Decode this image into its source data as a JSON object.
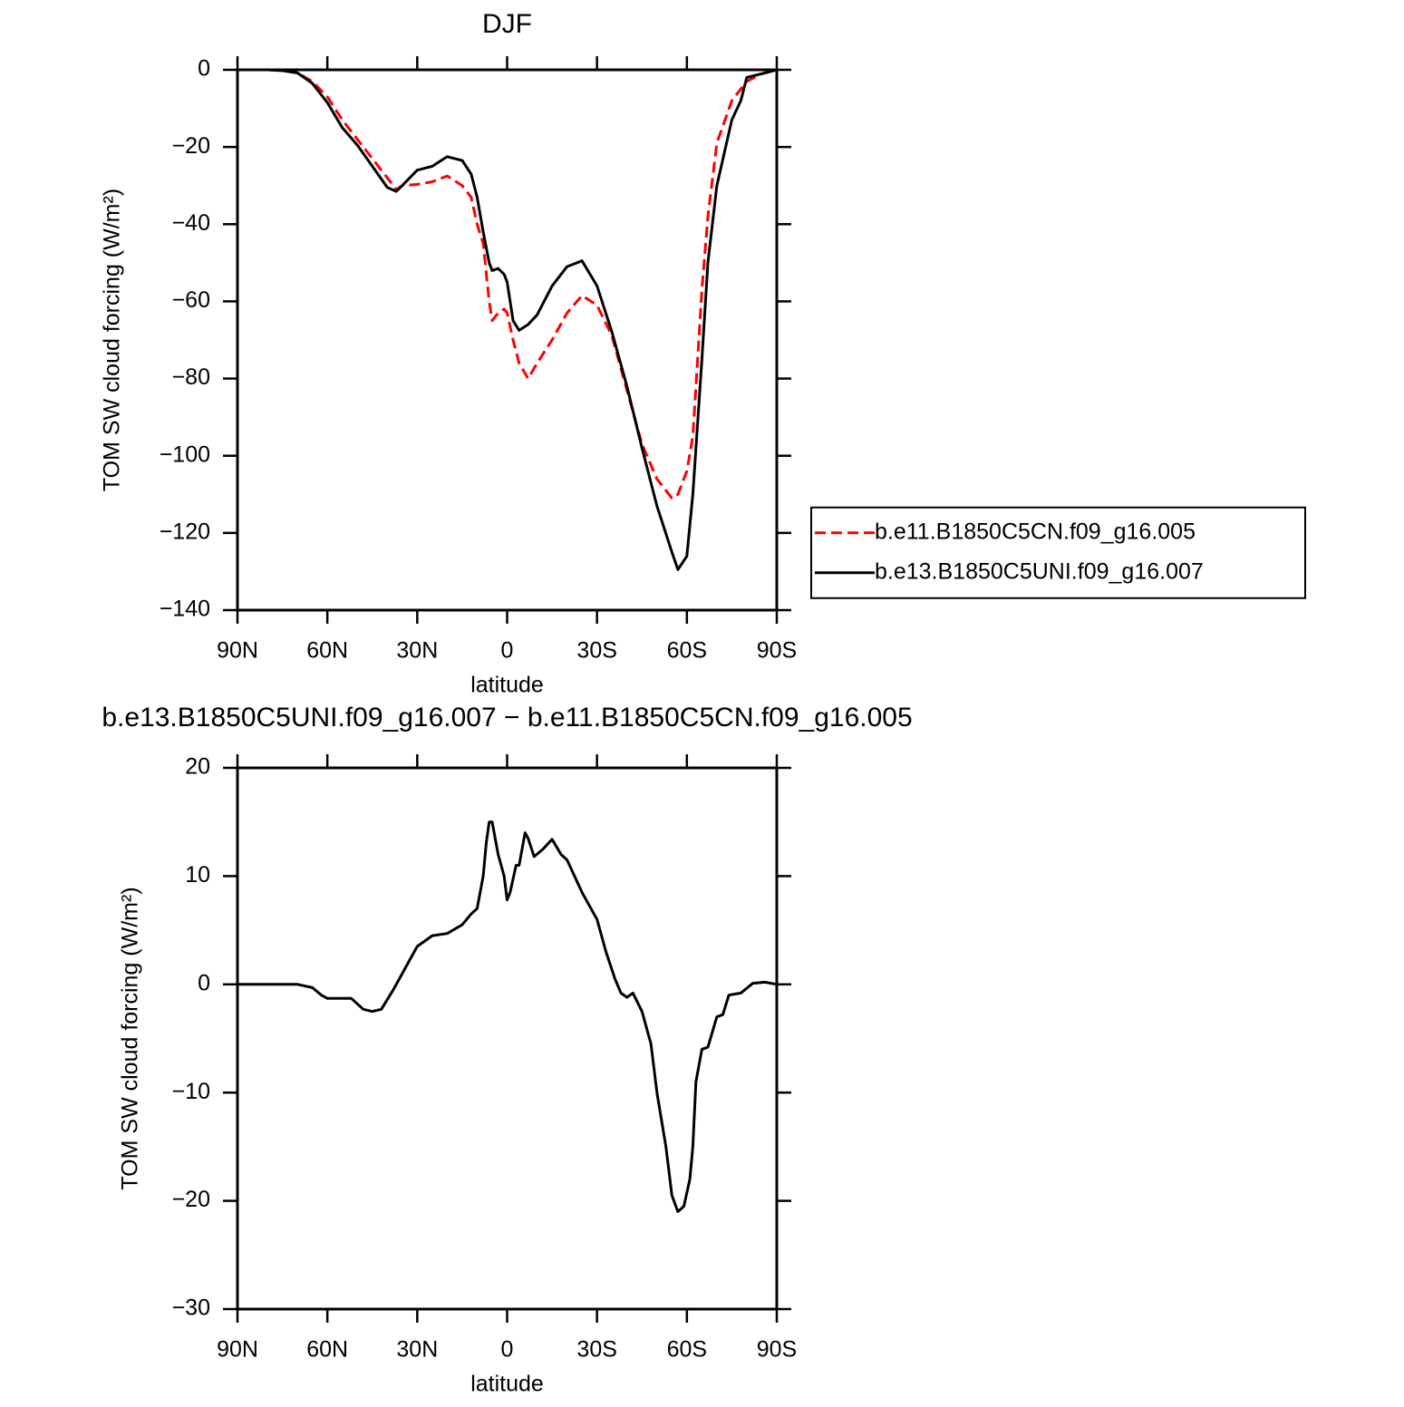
{
  "chart_data": [
    {
      "type": "line",
      "title": "DJF",
      "x_label": "latitude",
      "y_label": "TOM SW cloud forcing (W/m²)",
      "xlim": [
        90,
        -90
      ],
      "xticks": [
        {
          "value": 90,
          "label": "90N"
        },
        {
          "value": 60,
          "label": "60N"
        },
        {
          "value": 30,
          "label": "30N"
        },
        0,
        {
          "value": -30,
          "label": "30S"
        },
        {
          "value": -60,
          "label": "60S"
        },
        {
          "value": -90,
          "label": "90S"
        }
      ],
      "ylim": [
        -140,
        0
      ],
      "yticks": [
        0,
        {
          "value": -20,
          "label": "−20"
        },
        {
          "value": -40,
          "label": "−40"
        },
        {
          "value": -60,
          "label": "−60"
        },
        {
          "value": -80,
          "label": "−80"
        },
        {
          "value": -100,
          "label": "−100"
        },
        {
          "value": -120,
          "label": "−120"
        },
        {
          "value": -140,
          "label": "−140"
        }
      ],
      "legend": "right",
      "x": [
        90,
        85,
        80,
        75,
        70,
        65,
        60,
        55,
        50,
        45,
        40,
        37,
        35,
        30,
        25,
        20,
        15,
        12,
        10,
        8,
        6,
        5,
        3,
        1,
        0,
        -2,
        -4,
        -7,
        -10,
        -15,
        -20,
        -25,
        -30,
        -35,
        -40,
        -45,
        -50,
        -55,
        -57,
        -60,
        -62,
        -65,
        -67,
        -70,
        -75,
        -78,
        -80,
        -85,
        -90
      ],
      "series": [
        {
          "name": "b.e11.B1850C5CN.f09_g16.005",
          "color": "#ff0000",
          "style": "dashed",
          "values": [
            0,
            0,
            0,
            -0.2,
            -0.8,
            -3,
            -7,
            -13,
            -18,
            -23,
            -28,
            -31,
            -30,
            -29.7,
            -29,
            -27.5,
            -30,
            -33,
            -40,
            -45,
            -60,
            -65,
            -63,
            -62,
            -63,
            -70,
            -76,
            -80,
            -76,
            -70,
            -63,
            -58.5,
            -61,
            -69,
            -83,
            -97,
            -106,
            -111,
            -110,
            -104,
            -95,
            -57,
            -38,
            -19,
            -8,
            -5,
            -3,
            -1,
            0
          ]
        },
        {
          "name": "b.e13.B1850C5UNI.f09_g16.007",
          "color": "#000000",
          "style": "solid",
          "values": [
            0,
            0,
            0,
            -0.2,
            -0.8,
            -3.5,
            -8.5,
            -15,
            -19.5,
            -25,
            -30.5,
            -31.5,
            -30,
            -26,
            -25,
            -22.5,
            -23.5,
            -27,
            -33,
            -42,
            -50,
            -52,
            -51.5,
            -53,
            -55,
            -65,
            -67.5,
            -66,
            -63.5,
            -56,
            -51,
            -49.5,
            -56,
            -68,
            -82,
            -98,
            -113,
            -125,
            -129.5,
            -126,
            -110,
            -75,
            -50,
            -30,
            -13,
            -8,
            -2,
            -1,
            0
          ]
        }
      ]
    },
    {
      "type": "line",
      "title": "b.e13.B1850C5UNI.f09_g16.007 − b.e11.B1850C5CN.f09_g16.005",
      "x_label": "latitude",
      "y_label": "TOM SW cloud forcing (W/m²)",
      "xlim": [
        90,
        -90
      ],
      "xticks": [
        {
          "value": 90,
          "label": "90N"
        },
        {
          "value": 60,
          "label": "60N"
        },
        {
          "value": 30,
          "label": "30N"
        },
        0,
        {
          "value": -30,
          "label": "30S"
        },
        {
          "value": -60,
          "label": "60S"
        },
        {
          "value": -90,
          "label": "90S"
        }
      ],
      "ylim": [
        -30,
        20
      ],
      "yticks": [
        20,
        10,
        0,
        {
          "value": -10,
          "label": "−10"
        },
        {
          "value": -20,
          "label": "−20"
        },
        {
          "value": -30,
          "label": "−30"
        }
      ],
      "color": "#000000",
      "x": [
        90,
        80,
        70,
        65,
        62,
        60,
        55,
        52,
        48,
        45,
        42,
        38,
        35,
        33,
        30,
        25,
        20,
        15,
        12,
        10,
        8,
        7,
        6,
        5,
        3,
        1,
        0,
        -1,
        -3,
        -4,
        -6,
        -7,
        -9,
        -12,
        -15,
        -18,
        -20,
        -25,
        -30,
        -33,
        -36,
        -38,
        -40,
        -42,
        -45,
        -48,
        -50,
        -53,
        -55,
        -57,
        -59,
        -61,
        -62,
        -63,
        -65,
        -67,
        -70,
        -72,
        -74,
        -78,
        -82,
        -86,
        -90
      ],
      "values": [
        0,
        0,
        0,
        -0.3,
        -1,
        -1.3,
        -1.3,
        -1.3,
        -2.3,
        -2.5,
        -2.3,
        -0.5,
        1,
        2,
        3.5,
        4.5,
        4.7,
        5.5,
        6.5,
        7,
        10,
        13,
        15,
        15,
        12,
        10,
        7.8,
        8.5,
        11,
        11,
        14,
        13.5,
        11.8,
        12.5,
        13.4,
        12,
        11.5,
        8.5,
        6,
        3,
        0.5,
        -0.8,
        -1.2,
        -0.8,
        -2.5,
        -5.5,
        -10,
        -15,
        -19.5,
        -21,
        -20.5,
        -18,
        -15,
        -9,
        -6,
        -5.8,
        -3,
        -2.8,
        -1,
        -0.8,
        0.1,
        0.2,
        0
      ]
    }
  ]
}
